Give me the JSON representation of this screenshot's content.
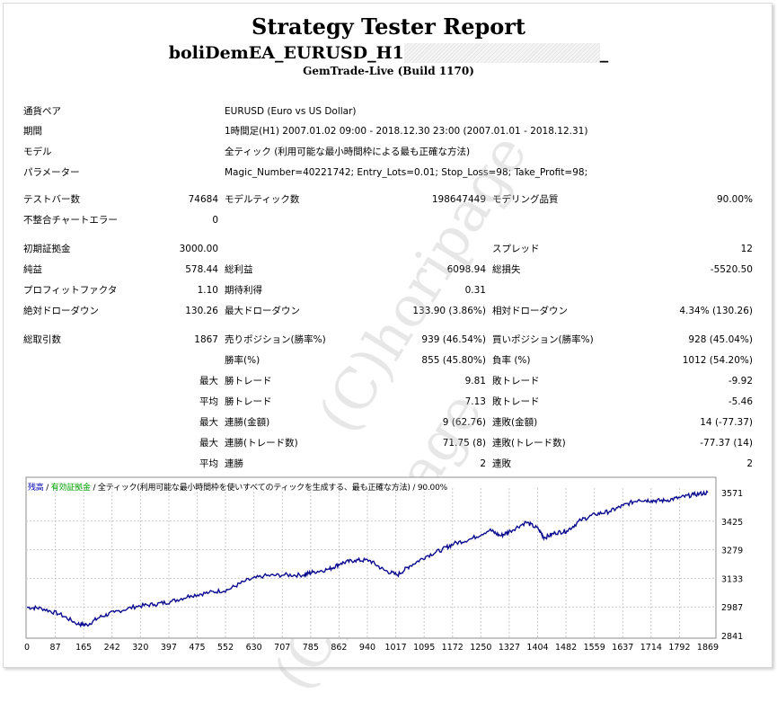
{
  "report": {
    "title": "Strategy Tester Report",
    "ea_name": "boliDemEA_EURUSD_H1",
    "underscore": "_",
    "server": "GemTrade-Live (Build 1170)"
  },
  "info": [
    {
      "label": "通貨ペア",
      "value": "EURUSD (Euro vs US Dollar)"
    },
    {
      "label": "期間",
      "value": "1時間足(H1) 2007.01.02 09:00 - 2018.12.30 23:00 (2007.01.01 - 2018.12.31)"
    },
    {
      "label": "モデル",
      "value": "全ティック (利用可能な最小時間枠による最も正確な方法)"
    },
    {
      "label": "パラメーター",
      "value": "Magic_Number=40221742; Entry_Lots=0.01; Stop_Loss=98; Take_Profit=98;"
    }
  ],
  "stats": {
    "bars_label": "テストバー数",
    "bars": "74684",
    "ticks_label": "モデルティック数",
    "ticks": "198647449",
    "quality_label": "モデリング品質",
    "quality": "90.00%",
    "mismatch_label": "不整合チャートエラー",
    "mismatch": "0",
    "deposit_label": "初期証拠金",
    "deposit": "3000.00",
    "spread_label": "スプレッド",
    "spread": "12",
    "net_label": "純益",
    "net": "578.44",
    "gross_profit_label": "総利益",
    "gross_profit": "6098.94",
    "gross_loss_label": "総損失",
    "gross_loss": "-5520.50",
    "pf_label": "プロフィットファクタ",
    "pf": "1.10",
    "payoff_label": "期待利得",
    "payoff": "0.31",
    "abs_dd_label": "絶対ドローダウン",
    "abs_dd": "130.26",
    "max_dd_label": "最大ドローダウン",
    "max_dd": "133.90 (3.86%)",
    "rel_dd_label": "相対ドローダウン",
    "rel_dd": "4.34% (130.26)",
    "trades_label": "総取引数",
    "trades": "1867",
    "short_label": "売りポジション(勝率%)",
    "short": "939 (46.54%)",
    "long_label": "買いポジション(勝率%)",
    "long": "928 (45.04%)",
    "win_label": "勝率(%)",
    "win": "855 (45.80%)",
    "loss_label": "負率 (%)",
    "loss": "1012 (54.20%)",
    "largest": "最大",
    "average": "平均",
    "maximum": "最大",
    "maximal": "最大",
    "avg2": "平均",
    "lp_label": "勝トレード",
    "lp": "9.81",
    "ll_label": "敗トレード",
    "ll": "-9.92",
    "ap_label": "勝トレード",
    "ap": "7.13",
    "al_label": "敗トレード",
    "al": "-5.46",
    "mcw_label": "連勝(金額)",
    "mcw": "9 (62.76)",
    "mcl_label": "連敗(金額)",
    "mcl": "14 (-77.37)",
    "mcp_label": "連勝(トレード数)",
    "mcp": "71.75 (8)",
    "mcll_label": "連敗(トレード数)",
    "mcll": "-77.37 (14)",
    "acw_label": "連勝",
    "acw": "2",
    "acl_label": "連敗",
    "acl": "2"
  },
  "legend": {
    "balance": "残高",
    "sep1": " / ",
    "equity": "有効証拠金",
    "rest": " / 全ティック(利用可能な最小時間枠を使いすべてのティックを生成する、最も正確な方法) / 90.00%"
  },
  "watermark": "(C)horipage",
  "colors": {
    "balance_line": "#0b0b8f",
    "grid": "#c8c8c8",
    "equity_legend": "#00a000",
    "balance_legend": "#0000b0"
  },
  "chart_data": {
    "type": "line",
    "x_ticks": [
      "0",
      "87",
      "165",
      "242",
      "320",
      "397",
      "475",
      "552",
      "630",
      "707",
      "785",
      "862",
      "940",
      "1017",
      "1095",
      "1172",
      "1250",
      "1327",
      "1404",
      "1482",
      "1559",
      "1637",
      "1714",
      "1792",
      "1869"
    ],
    "y_ticks": [
      "3571",
      "3425",
      "3279",
      "3133",
      "2987",
      "2841"
    ],
    "ylim": [
      2841,
      3571
    ],
    "xlim": [
      0,
      1869
    ],
    "series": [
      {
        "name": "残高",
        "points": [
          [
            0,
            2985
          ],
          [
            40,
            2980
          ],
          [
            90,
            2950
          ],
          [
            140,
            2900
          ],
          [
            165,
            2895
          ],
          [
            200,
            2935
          ],
          [
            240,
            2960
          ],
          [
            300,
            2990
          ],
          [
            350,
            3000
          ],
          [
            397,
            3015
          ],
          [
            450,
            3045
          ],
          [
            500,
            3060
          ],
          [
            552,
            3075
          ],
          [
            600,
            3120
          ],
          [
            650,
            3145
          ],
          [
            707,
            3150
          ],
          [
            760,
            3150
          ],
          [
            785,
            3165
          ],
          [
            830,
            3180
          ],
          [
            862,
            3210
          ],
          [
            900,
            3225
          ],
          [
            940,
            3225
          ],
          [
            980,
            3175
          ],
          [
            1017,
            3150
          ],
          [
            1050,
            3195
          ],
          [
            1095,
            3245
          ],
          [
            1140,
            3280
          ],
          [
            1172,
            3310
          ],
          [
            1220,
            3335
          ],
          [
            1270,
            3380
          ],
          [
            1300,
            3350
          ],
          [
            1327,
            3375
          ],
          [
            1370,
            3420
          ],
          [
            1404,
            3385
          ],
          [
            1420,
            3340
          ],
          [
            1450,
            3365
          ],
          [
            1482,
            3375
          ],
          [
            1520,
            3430
          ],
          [
            1560,
            3460
          ],
          [
            1600,
            3475
          ],
          [
            1637,
            3505
          ],
          [
            1680,
            3535
          ],
          [
            1714,
            3530
          ],
          [
            1750,
            3530
          ],
          [
            1792,
            3545
          ],
          [
            1830,
            3560
          ],
          [
            1869,
            3571
          ]
        ]
      }
    ]
  }
}
